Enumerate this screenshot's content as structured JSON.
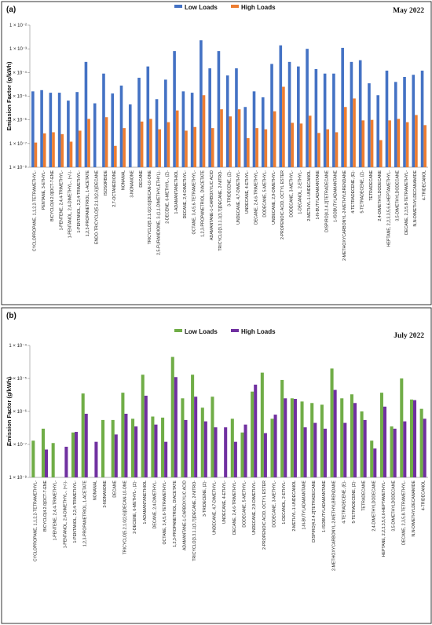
{
  "chart_data": [
    {
      "type": "bar",
      "panel_label": "(a)",
      "date": "May 2022",
      "ylabel": "Emission Factor (g/kWh)",
      "ylim": [
        1e-08,
        0.01
      ],
      "log_scale": true,
      "y_ticks": [
        "1 × 10⁻⁸",
        "1 × 10⁻⁷",
        "1 × 10⁻⁶",
        "1 × 10⁻⁵",
        "1 × 10⁻⁴",
        "1 × 10⁻³",
        "1 × 10⁻²"
      ],
      "legend_placement": "top-center",
      "categories": [
        "CYCLOPROPANE, 1,1,2,2-TETRAMETHYL-",
        "PENTANE, 3-ETHYL-",
        "BICYCLO[4.2.0]OCT-7-ENE",
        "1-PENTENE, 2,4,4-TRIMETHYL-",
        "1-PENTANOL, 2,4-DIMETHYL-, (+/-)-",
        "1-PENTANOL, 2,2,4-TRIMETHYL-",
        "1,2,3-PROPANETRIOL, 1-ACETATE",
        "ENDO-TRICYCLO[5.2.1.0(2,6)]DECANE",
        "ISOSORBIDE",
        "2,7-OCTANEDIONE",
        "NONANAL",
        "3-NONANONE",
        "DECANE",
        "TRICYCLO[5.2.1.0(2,6)]DECAN-10-ONE",
        "2,5-FURANDIONE, 3-(1,1-DIMETHYLETHYL)-",
        "2-DECENE, 6-METHYL-, (Z)-",
        "1-ADAMANTANETHIOL",
        "DECANE, 2,4-DIMETHYL-",
        "OCTANE, 3,4,5,6-TETRAMETHYL-",
        "1,2,3-PROPANETRIOL, DIACETATE",
        "ADAMANTANE-1-CARBOXYLIC ACID",
        "TRICYCLO[3.3.1.1(3,7)]DECANE, 2-NITRO-",
        "3-TRIDECENE, (Z)-",
        "UNDECANE, 4,7-DIMETHYL-",
        "UNDECANE, 4-ETHYL-",
        "DECANE, 2,4,6-TRIMETHYL-",
        "DODECANE, 5-METHYL-",
        "UNDECANE, 2,9-DIMETHYL-",
        "2-PROPENOIC ACID, OCTYL ESTER",
        "DODECANE, 3-METHYL-",
        "1-DECANOL, 2-ETHYL-",
        "2-METHYL-1-UNDECANOL",
        "1-N-BUTYLADAMANTANE",
        "DISPIRO[4.2.4.2]TETRADECANE",
        "1-ISOBUTYLADAMANTANE",
        "2-METHOXYCARBONYL-2-METHYLBRENDANE",
        "4-TETRADECENE, (E)-",
        "5-TETRADECENE, (Z)-",
        "TETRADECANE",
        "2,4-DIMETHYLDODECANE",
        "HEPTANE, 2,2,3,3,5,6,6-HEPTAMETHYL-",
        "3,5-DIMETHYLDODECANE",
        "DECANE, 2,3,5,8-TETRAMETHYL-",
        "N,N-DIMETHYLDECANAMIDE",
        "4-TRIDECANOL"
      ],
      "series": [
        {
          "name": "Low Loads",
          "color": "#4472C4",
          "values": [
            1.6e-05,
            1.8e-05,
            1.4e-05,
            1.4e-05,
            6.5e-06,
            1.5e-05,
            0.00028,
            5e-06,
            9e-05,
            1.3e-05,
            2.8e-05,
            4.5e-06,
            6e-05,
            0.00018,
            7.5e-06,
            5e-05,
            0.0008,
            1.6e-05,
            1.4e-05,
            0.0023,
            0.00015,
            0.0008,
            7.5e-05,
            0.00015,
            3.5e-06,
            1.6e-05,
            9e-06,
            0.00023,
            0.0014,
            0.00028,
            0.00018,
            0.001,
            0.00014,
            9e-05,
            9e-05,
            0.0011,
            0.00028,
            0.00033,
            3.5e-05,
            1.1e-05,
            0.00012,
            4e-05,
            6.5e-05,
            8e-05,
            0.00012
          ]
        },
        {
          "name": "High Loads",
          "color": "#ED7D31",
          "values": [
            1.1e-07,
            2.7e-07,
            3e-07,
            2.5e-07,
            1.2e-07,
            3.5e-07,
            1.1e-06,
            0,
            1.3e-06,
            8e-08,
            4.5e-07,
            0,
            8.5e-07,
            1.1e-06,
            4e-07,
            8e-07,
            2.5e-06,
            3.5e-07,
            5e-07,
            1.1e-05,
            4.5e-07,
            2.8e-06,
            1.4e-06,
            2.8e-06,
            1.7e-07,
            4.5e-07,
            4e-07,
            2.3e-06,
            2.5e-05,
            7.5e-07,
            7e-07,
            1.5e-06,
            2.8e-07,
            4e-07,
            3e-07,
            3.5e-06,
            8e-06,
            9.5e-07,
            1e-06,
            1.4e-07,
            9.5e-07,
            1.1e-06,
            8e-07,
            1.6e-06,
            6e-07
          ]
        }
      ]
    },
    {
      "type": "bar",
      "panel_label": "(b)",
      "date": "July 2022",
      "ylabel": "Emission Factor (g/kWh)",
      "ylim": [
        1e-08,
        0.0001
      ],
      "log_scale": true,
      "y_ticks": [
        "1 × 10⁻⁸",
        "1 × 10⁻⁷",
        "1 × 10⁻⁶",
        "1 × 10⁻⁵",
        "1 × 10⁻⁴"
      ],
      "legend_placement": "top-center",
      "categories": [
        "CYCLOPROPANE, 1,1,2,2-TETRAMETHYL-",
        "BICYCLO[4.2.0]OCT-7-ENE",
        "1-PENTENE, 2,4,4-TRIMETHYL-",
        "1-PENTANOL, 2,4-DIMETHYL-, (+/-)-",
        "1-PENTANOL, 2,2,4-TRIMETHYL-",
        "1,2,3-PROPANETRIOL, 1-ACETATE",
        "NONANAL",
        "3-NONANONE",
        "DECANE",
        "TRICYCLO[5.2.1.0(2,6)]DECAN-10-ONE",
        "2-DECENE, 6-METHYL-, (Z)-",
        "1-ADAMANTANETHIOL",
        "DECANE, 2,4-DIMETHYL-",
        "OCTANE, 3,4,5,6-TETRAMETHYL-",
        "1,2,3-PROPANETRIOL, DIACETATE",
        "ADAMANTANE-1-CARBOXYLIC ACID",
        "TRICYCLO[3.3.1.1(3,7)]DECANE, 2-NITRO-",
        "3-TRIDECENE, (Z)-",
        "UNDECANE, 4,7-DIMETHYL-",
        "UNDECANE, 4-ETHYL-",
        "DECANE, 2,4,6-TRIMETHYL-",
        "DODECANE, 5-METHYL-",
        "UNDECANE, 2,9-DIMETHYL-",
        "2-PROPENOIC ACID, OCTYL ESTER",
        "DODECANE, 3-METHYL-",
        "1-DECANOL, 2-ETHYL-",
        "2-METHYL-1-UNDECANOL",
        "1-N-BUTYLADAMANTANE",
        "DISPIRO[4.2.4.2]TETRADECANE",
        "1-ISOBUTYLADAMANTANE",
        "2-METHOXYCARBONYL-2-METHYLBRENDANE",
        "4-TETRADECENE, (E)-",
        "5-TETRADECENE, (Z)-",
        "TETRADECANE",
        "2,4-DIMETHYLDODECANE",
        "HEPTANE, 2,2,3,3,5,6,6-HEPTAMETHYL-",
        "3,5-DIMETHYLDODECANE",
        "DECANE, 2,3,5,8-TETRAMETHYL-",
        "N,N-DIMETHYLDECANAMIDE",
        "4-TRIDECANOL"
      ],
      "series": [
        {
          "name": "Low Loads",
          "color": "#70AD47",
          "values": [
            1.3e-07,
            3e-07,
            1.1e-07,
            0,
            2.3e-07,
            3.5e-06,
            0,
            5.5e-07,
            5.5e-07,
            3.7e-06,
            6e-07,
            1.3e-05,
            7e-07,
            6.5e-07,
            4.5e-05,
            2.5e-06,
            1.3e-05,
            1.3e-06,
            2.8e-06,
            0,
            6e-07,
            2.3e-07,
            4e-06,
            1.5e-05,
            6e-07,
            9e-06,
            2.5e-06,
            2e-06,
            1.8e-06,
            1.6e-06,
            2e-05,
            2.5e-06,
            3.3e-06,
            1e-06,
            1.3e-07,
            3.7e-06,
            3.5e-07,
            1e-05,
            2.3e-06,
            1.2e-06
          ]
        },
        {
          "name": "High Loads",
          "color": "#7030A0",
          "values": [
            0,
            7e-08,
            0,
            8.5e-08,
            2.4e-07,
            8.5e-07,
            1.2e-07,
            0,
            2e-07,
            8.5e-07,
            3.5e-07,
            3e-06,
            4e-07,
            1.2e-07,
            1.1e-05,
            5.5e-07,
            2.8e-06,
            5e-07,
            3.3e-07,
            3.3e-07,
            1.2e-07,
            4e-07,
            6.5e-06,
            2.2e-07,
            8e-07,
            2.5e-06,
            2.4e-06,
            3.3e-07,
            4.5e-07,
            3e-07,
            4.5e-06,
            4.5e-07,
            1.8e-06,
            5.5e-07,
            7.5e-08,
            1.4e-06,
            3e-07,
            5e-07,
            2.2e-06,
            6e-07
          ]
        }
      ]
    }
  ]
}
